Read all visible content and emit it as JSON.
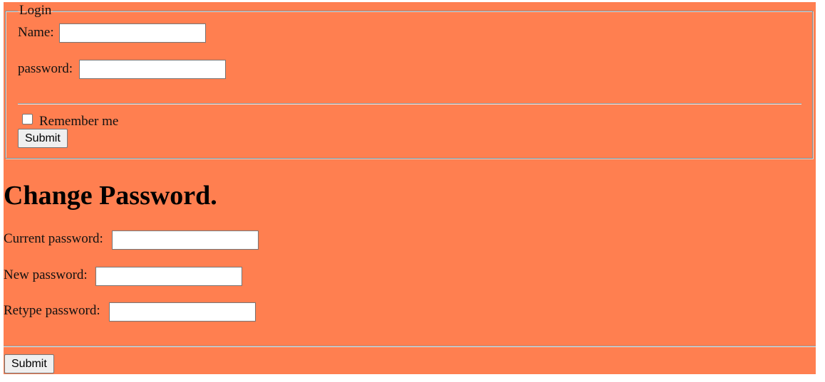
{
  "login": {
    "legend": "Login",
    "name_label": "Name:",
    "name_value": "",
    "password_label": "password:",
    "password_value": "",
    "remember_label": "Remember me",
    "remember_checked": false,
    "submit_label": "Submit"
  },
  "change_password": {
    "heading": "Change Password.",
    "current_label": "Current password:",
    "current_value": "",
    "new_label": "New password:",
    "new_value": "",
    "retype_label": "Retype password:",
    "retype_value": "",
    "submit_label": "Submit"
  },
  "colors": {
    "page_background": "#ff7f50"
  }
}
